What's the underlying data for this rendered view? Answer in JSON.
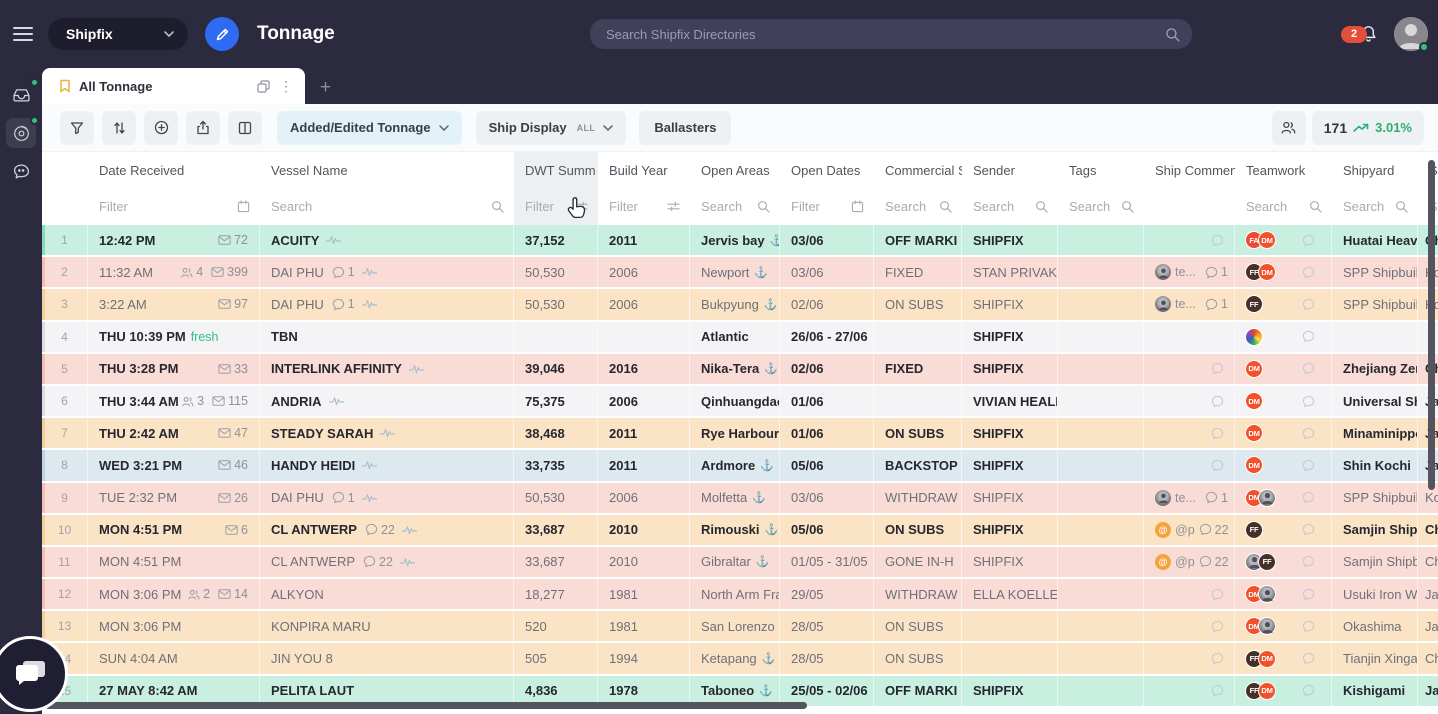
{
  "header": {
    "workspace": "Shipfix",
    "page_title": "Tonnage",
    "search_placeholder": "Search Shipfix Directories",
    "notification_count": "2"
  },
  "tabs": {
    "active": "All Tonnage",
    "add_label": "+"
  },
  "toolbar": {
    "added_edited_label": "Added/Edited Tonnage",
    "ship_display_label": "Ship Display",
    "ship_display_mode": "ALL",
    "ballasters_label": "Ballasters",
    "count": "171",
    "trend_pct": "3.01%"
  },
  "icons": {
    "anchor": "⚓",
    "kebab": "⋮",
    "sort_caret": "▾"
  },
  "colors": {
    "accent_blue": "#2e6bf2",
    "trend_green": "#2fae74",
    "badge_red": "#e2503c",
    "fresh_green": "#2fbf83"
  },
  "table": {
    "columns": [
      {
        "label": "",
        "filter": "",
        "ficon": "",
        "hl": false
      },
      {
        "label": "Date Received",
        "filter": "Filter",
        "ficon": "calendar",
        "hl": false
      },
      {
        "label": "Vessel Name",
        "filter": "Search",
        "ficon": "search",
        "hl": false
      },
      {
        "label": "DWT Summ",
        "filter": "Filter",
        "ficon": "sliders",
        "hl": true,
        "sorted": true
      },
      {
        "label": "Build Year",
        "filter": "Filter",
        "ficon": "sliders",
        "hl": false
      },
      {
        "label": "Open Areas",
        "filter": "Search",
        "ficon": "search",
        "hl": false
      },
      {
        "label": "Open Dates",
        "filter": "Filter",
        "ficon": "calendar",
        "hl": false
      },
      {
        "label": "Commercial S",
        "filter": "Search",
        "ficon": "search",
        "hl": false
      },
      {
        "label": "Sender",
        "filter": "Search",
        "ficon": "search",
        "hl": false
      },
      {
        "label": "Tags",
        "filter": "Search",
        "ficon": "search",
        "hl": false
      },
      {
        "label": "Ship Commen",
        "filter": "",
        "ficon": "",
        "hl": false
      },
      {
        "label": "Teamwork",
        "filter": "Search",
        "ficon": "search",
        "hl": false
      },
      {
        "label": "Shipyard",
        "filter": "Search",
        "ficon": "search",
        "hl": false
      },
      {
        "label": "Sh",
        "filter": "Se",
        "ficon": "",
        "hl": false
      }
    ],
    "rows": [
      {
        "num": "1",
        "color": "mint",
        "bold": true,
        "time": "12:42 PM",
        "fresh": false,
        "people": "",
        "mail": "72",
        "vessel": "ACUITY",
        "vchat": "",
        "pulse": true,
        "dwt": "37,152",
        "build": "2011",
        "area": "Jervis bay",
        "anchor": true,
        "dates": "03/06",
        "status": "OFF MARKI",
        "sender": "SHIPFIX",
        "commen": {
          "type": "chat"
        },
        "team": [
          "FA",
          "DM"
        ],
        "shipyard": "Huatai Heavy",
        "country": "Ch"
      },
      {
        "num": "2",
        "color": "pink",
        "bold": false,
        "time": "11:32 AM",
        "fresh": false,
        "people": "4",
        "mail": "399",
        "vessel": "DAI PHU",
        "vchat": "1",
        "pulse": true,
        "dwt": "50,530",
        "build": "2006",
        "area": "Newport",
        "anchor": true,
        "dates": "03/06",
        "status": "FIXED",
        "sender": "STAN PRIVAK,",
        "commen": {
          "type": "team",
          "label": "te...",
          "count": "1"
        },
        "team": [
          "FF",
          "DM"
        ],
        "shipyard": "SPP Shipbuild",
        "country": "Ko"
      },
      {
        "num": "3",
        "color": "peach",
        "bold": false,
        "time": "3:22 AM",
        "fresh": false,
        "people": "",
        "mail": "97",
        "vessel": "DAI PHU",
        "vchat": "1",
        "pulse": true,
        "dwt": "50,530",
        "build": "2006",
        "area": "Bukpyung",
        "anchor": true,
        "dates": "02/06",
        "status": "ON SUBS",
        "sender": "SHIPFIX",
        "commen": {
          "type": "team",
          "label": "te...",
          "count": "1"
        },
        "team": [
          "FF"
        ],
        "shipyard": "SPP Shipbuild",
        "country": "Ko"
      },
      {
        "num": "4",
        "color": "gray",
        "bold": true,
        "time": "THU 10:39 PM",
        "fresh": true,
        "people": "",
        "mail": "",
        "vessel": "TBN",
        "vchat": "",
        "pulse": false,
        "dwt": "",
        "build": "",
        "area": "Atlantic",
        "anchor": false,
        "dates": "26/06 - 27/06",
        "status": "",
        "sender": "SHIPFIX",
        "commen": {
          "type": "none"
        },
        "team": [
          "rainbow"
        ],
        "shipyard": "",
        "country": ""
      },
      {
        "num": "5",
        "color": "pink",
        "bold": true,
        "time": "THU 3:28 PM",
        "fresh": false,
        "people": "",
        "mail": "33",
        "vessel": "INTERLINK AFFINITY",
        "vchat": "",
        "pulse": true,
        "dwt": "39,046",
        "build": "2016",
        "area": "Nika-Tera",
        "anchor": true,
        "dates": "02/06",
        "status": "FIXED",
        "sender": "SHIPFIX",
        "commen": {
          "type": "chat"
        },
        "team": [
          "DM"
        ],
        "shipyard": "Zhejiang Zeng",
        "country": "Ch"
      },
      {
        "num": "6",
        "color": "gray",
        "bold": true,
        "time": "THU 3:44 AM",
        "fresh": false,
        "people": "3",
        "mail": "115",
        "vessel": "ANDRIA",
        "vchat": "",
        "pulse": true,
        "dwt": "75,375",
        "build": "2006",
        "area": "Qinhuangdao",
        "anchor": false,
        "dates": "01/06",
        "status": "",
        "sender": "VIVIAN HEALE",
        "commen": {
          "type": "chat"
        },
        "team": [
          "DM"
        ],
        "shipyard": "Universal Shb",
        "country": "Ja"
      },
      {
        "num": "7",
        "color": "peach",
        "bold": true,
        "time": "THU 2:42 AM",
        "fresh": false,
        "people": "",
        "mail": "47",
        "vessel": "STEADY SARAH",
        "vchat": "",
        "pulse": true,
        "dwt": "38,468",
        "build": "2011",
        "area": "Rye Harbour",
        "anchor": true,
        "dates": "01/06",
        "status": "ON SUBS",
        "sender": "SHIPFIX",
        "commen": {
          "type": "chat"
        },
        "team": [
          "DM"
        ],
        "shipyard": "Minaminippor",
        "country": "Ja"
      },
      {
        "num": "8",
        "color": "blue",
        "bold": true,
        "time": "WED 3:21 PM",
        "fresh": false,
        "people": "",
        "mail": "46",
        "vessel": "HANDY HEIDI",
        "vchat": "",
        "pulse": true,
        "dwt": "33,735",
        "build": "2011",
        "area": "Ardmore",
        "anchor": true,
        "dates": "05/06",
        "status": "BACKSTOP",
        "sender": "SHIPFIX",
        "commen": {
          "type": "chat"
        },
        "team": [
          "DM"
        ],
        "shipyard": "Shin Kochi",
        "country": "Ja"
      },
      {
        "num": "9",
        "color": "pink",
        "bold": false,
        "time": "TUE 2:32 PM",
        "fresh": false,
        "people": "",
        "mail": "26",
        "vessel": "DAI PHU",
        "vchat": "1",
        "pulse": true,
        "dwt": "50,530",
        "build": "2006",
        "area": "Molfetta",
        "anchor": true,
        "dates": "03/06",
        "status": "WITHDRAW",
        "sender": "SHIPFIX",
        "commen": {
          "type": "team",
          "label": "te...",
          "count": "1"
        },
        "team": [
          "DM",
          "photo"
        ],
        "shipyard": "SPP Shipbuild",
        "country": "Ko"
      },
      {
        "num": "10",
        "color": "peach",
        "bold": true,
        "time": "MON 4:51 PM",
        "fresh": false,
        "people": "",
        "mail": "6",
        "vessel": "CL ANTWERP",
        "vchat": "22",
        "pulse": true,
        "dwt": "33,687",
        "build": "2010",
        "area": "Rimouski",
        "anchor": true,
        "dates": "05/06",
        "status": "ON SUBS",
        "sender": "SHIPFIX",
        "commen": {
          "type": "mention",
          "label": "@p",
          "count": "22"
        },
        "team": [
          "FF"
        ],
        "shipyard": "Samjin Shipbu",
        "country": "Ch"
      },
      {
        "num": "11",
        "color": "pink",
        "bold": false,
        "time": "MON 4:51 PM",
        "fresh": false,
        "people": "",
        "mail": "",
        "vessel": "CL ANTWERP",
        "vchat": "22",
        "pulse": true,
        "dwt": "33,687",
        "build": "2010",
        "area": "Gibraltar",
        "anchor": true,
        "dates": "01/05 - 31/05",
        "status": "GONE IN-H",
        "sender": "SHIPFIX",
        "commen": {
          "type": "mention",
          "label": "@p",
          "count": "22"
        },
        "team": [
          "photo",
          "FF"
        ],
        "shipyard": "Samjin Shipbu",
        "country": "Ch"
      },
      {
        "num": "12",
        "color": "pink",
        "bold": false,
        "time": "MON 3:06 PM",
        "fresh": false,
        "people": "2",
        "mail": "14",
        "vessel": "ALKYON",
        "vchat": "",
        "pulse": false,
        "dwt": "18,277",
        "build": "1981",
        "area": "North Arm Fra",
        "anchor": false,
        "dates": "29/05",
        "status": "WITHDRAW",
        "sender": "ELLA KOELLEI",
        "commen": {
          "type": "chat"
        },
        "team": [
          "DM",
          "photo"
        ],
        "shipyard": "Usuki Iron Wo",
        "country": "Ja"
      },
      {
        "num": "13",
        "color": "peach",
        "bold": false,
        "time": "MON 3:06 PM",
        "fresh": false,
        "people": "",
        "mail": "",
        "vessel": "KONPIRA MARU",
        "vchat": "",
        "pulse": false,
        "dwt": "520",
        "build": "1981",
        "area": "San Lorenzo",
        "anchor": true,
        "dates": "28/05",
        "status": "ON SUBS",
        "sender": "",
        "commen": {
          "type": "chat"
        },
        "team": [
          "DM",
          "photo"
        ],
        "shipyard": "Okashima",
        "country": "Ja"
      },
      {
        "num": "14",
        "color": "peach",
        "bold": false,
        "time": "SUN 4:04 AM",
        "fresh": false,
        "people": "",
        "mail": "",
        "vessel": "JIN YOU 8",
        "vchat": "",
        "pulse": false,
        "dwt": "505",
        "build": "1994",
        "area": "Ketapang",
        "anchor": true,
        "dates": "28/05",
        "status": "ON SUBS",
        "sender": "",
        "commen": {
          "type": "chat"
        },
        "team": [
          "FF",
          "DM"
        ],
        "shipyard": "Tianjin Xingan",
        "country": "Ch"
      },
      {
        "num": "15",
        "color": "mint",
        "bold": true,
        "time": "27 MAY 8:42 AM",
        "fresh": false,
        "people": "",
        "mail": "",
        "vessel": "PELITA LAUT",
        "vchat": "",
        "pulse": false,
        "dwt": "4,836",
        "build": "1978",
        "area": "Taboneo",
        "anchor": true,
        "dates": "25/05 - 02/06",
        "status": "OFF MARKI",
        "sender": "SHIPFIX",
        "commen": {
          "type": "chat"
        },
        "team": [
          "FF",
          "DM"
        ],
        "shipyard": "Kishigami",
        "country": "Ja"
      }
    ]
  }
}
